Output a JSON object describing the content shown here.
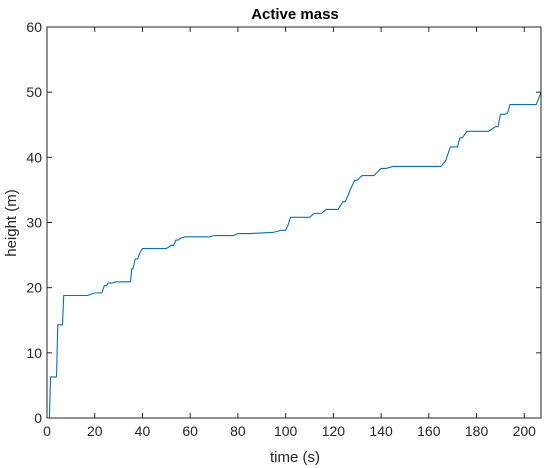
{
  "chart_data": {
    "type": "line",
    "title": "Active mass",
    "xlabel": "time (s)",
    "ylabel": "height (m)",
    "xlim": [
      0,
      207
    ],
    "ylim": [
      0,
      60
    ],
    "xticks": [
      0,
      20,
      40,
      60,
      80,
      100,
      120,
      140,
      160,
      180,
      200
    ],
    "yticks": [
      0,
      10,
      20,
      30,
      40,
      50,
      60
    ],
    "grid": false,
    "line_color": "#0072BD",
    "series": [
      {
        "x": [
          1,
          1.5,
          2.5,
          4,
          4.5,
          5.5,
          6.5,
          7,
          7.8,
          8,
          8.5,
          13,
          17,
          20,
          21,
          23,
          24,
          25,
          25.5,
          27,
          29,
          33,
          35,
          35.5,
          36,
          37,
          38,
          39,
          40,
          41,
          45,
          50,
          52,
          53,
          54,
          55,
          56,
          58,
          60,
          65,
          68,
          70,
          75,
          78,
          80,
          85,
          90,
          95,
          98,
          100,
          101,
          102,
          105,
          108,
          110,
          112,
          115,
          117,
          120,
          122,
          124,
          125,
          126,
          127,
          129,
          130,
          132,
          135,
          137,
          140,
          142,
          145,
          148,
          150,
          155,
          160,
          165,
          167,
          169,
          170,
          172,
          173,
          174,
          176,
          180,
          185,
          188,
          189,
          190,
          192,
          193,
          194,
          195,
          197,
          200,
          205,
          206,
          207
        ],
        "values": [
          0,
          6.3,
          6.3,
          6.3,
          14.3,
          14.3,
          14.3,
          18.8,
          18.8,
          18.8,
          18.8,
          18.8,
          18.8,
          19.2,
          19.2,
          19.2,
          20.3,
          20.3,
          20.7,
          20.7,
          20.9,
          20.9,
          20.9,
          22.9,
          22.9,
          24.4,
          24.4,
          25.4,
          26.0,
          26.0,
          26.0,
          26.0,
          26.5,
          26.5,
          27.3,
          27.3,
          27.6,
          27.8,
          27.8,
          27.8,
          27.8,
          28.0,
          28.0,
          28.0,
          28.3,
          28.3,
          28.4,
          28.5,
          28.8,
          28.8,
          29.6,
          30.8,
          30.8,
          30.8,
          30.8,
          31.4,
          31.4,
          32.0,
          32.0,
          32.0,
          33.2,
          33.2,
          34.0,
          35.0,
          36.5,
          36.5,
          37.2,
          37.2,
          37.2,
          38.3,
          38.3,
          38.6,
          38.6,
          38.6,
          38.6,
          38.6,
          38.6,
          39.4,
          41.6,
          41.6,
          41.6,
          43.0,
          43.0,
          44.0,
          44.0,
          44.0,
          44.7,
          44.7,
          46.6,
          46.6,
          46.8,
          48.1,
          48.1,
          48.1,
          48.1,
          48.1,
          49.0,
          50.0
        ]
      }
    ]
  }
}
